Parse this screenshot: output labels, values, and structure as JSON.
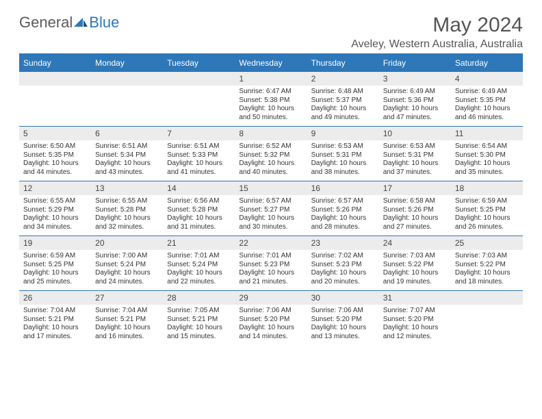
{
  "logo": {
    "text1": "General",
    "text2": "Blue"
  },
  "title": "May 2024",
  "location": "Aveley, Western Australia, Australia",
  "colors": {
    "accent": "#2e77b8",
    "band": "#ececec",
    "text": "#333333"
  },
  "weekdays": [
    "Sunday",
    "Monday",
    "Tuesday",
    "Wednesday",
    "Thursday",
    "Friday",
    "Saturday"
  ],
  "weeks": [
    [
      {
        "n": "",
        "sr": "",
        "ss": "",
        "dl": ""
      },
      {
        "n": "",
        "sr": "",
        "ss": "",
        "dl": ""
      },
      {
        "n": "",
        "sr": "",
        "ss": "",
        "dl": ""
      },
      {
        "n": "1",
        "sr": "Sunrise: 6:47 AM",
        "ss": "Sunset: 5:38 PM",
        "dl": "Daylight: 10 hours and 50 minutes."
      },
      {
        "n": "2",
        "sr": "Sunrise: 6:48 AM",
        "ss": "Sunset: 5:37 PM",
        "dl": "Daylight: 10 hours and 49 minutes."
      },
      {
        "n": "3",
        "sr": "Sunrise: 6:49 AM",
        "ss": "Sunset: 5:36 PM",
        "dl": "Daylight: 10 hours and 47 minutes."
      },
      {
        "n": "4",
        "sr": "Sunrise: 6:49 AM",
        "ss": "Sunset: 5:35 PM",
        "dl": "Daylight: 10 hours and 46 minutes."
      }
    ],
    [
      {
        "n": "5",
        "sr": "Sunrise: 6:50 AM",
        "ss": "Sunset: 5:35 PM",
        "dl": "Daylight: 10 hours and 44 minutes."
      },
      {
        "n": "6",
        "sr": "Sunrise: 6:51 AM",
        "ss": "Sunset: 5:34 PM",
        "dl": "Daylight: 10 hours and 43 minutes."
      },
      {
        "n": "7",
        "sr": "Sunrise: 6:51 AM",
        "ss": "Sunset: 5:33 PM",
        "dl": "Daylight: 10 hours and 41 minutes."
      },
      {
        "n": "8",
        "sr": "Sunrise: 6:52 AM",
        "ss": "Sunset: 5:32 PM",
        "dl": "Daylight: 10 hours and 40 minutes."
      },
      {
        "n": "9",
        "sr": "Sunrise: 6:53 AM",
        "ss": "Sunset: 5:31 PM",
        "dl": "Daylight: 10 hours and 38 minutes."
      },
      {
        "n": "10",
        "sr": "Sunrise: 6:53 AM",
        "ss": "Sunset: 5:31 PM",
        "dl": "Daylight: 10 hours and 37 minutes."
      },
      {
        "n": "11",
        "sr": "Sunrise: 6:54 AM",
        "ss": "Sunset: 5:30 PM",
        "dl": "Daylight: 10 hours and 35 minutes."
      }
    ],
    [
      {
        "n": "12",
        "sr": "Sunrise: 6:55 AM",
        "ss": "Sunset: 5:29 PM",
        "dl": "Daylight: 10 hours and 34 minutes."
      },
      {
        "n": "13",
        "sr": "Sunrise: 6:55 AM",
        "ss": "Sunset: 5:28 PM",
        "dl": "Daylight: 10 hours and 32 minutes."
      },
      {
        "n": "14",
        "sr": "Sunrise: 6:56 AM",
        "ss": "Sunset: 5:28 PM",
        "dl": "Daylight: 10 hours and 31 minutes."
      },
      {
        "n": "15",
        "sr": "Sunrise: 6:57 AM",
        "ss": "Sunset: 5:27 PM",
        "dl": "Daylight: 10 hours and 30 minutes."
      },
      {
        "n": "16",
        "sr": "Sunrise: 6:57 AM",
        "ss": "Sunset: 5:26 PM",
        "dl": "Daylight: 10 hours and 28 minutes."
      },
      {
        "n": "17",
        "sr": "Sunrise: 6:58 AM",
        "ss": "Sunset: 5:26 PM",
        "dl": "Daylight: 10 hours and 27 minutes."
      },
      {
        "n": "18",
        "sr": "Sunrise: 6:59 AM",
        "ss": "Sunset: 5:25 PM",
        "dl": "Daylight: 10 hours and 26 minutes."
      }
    ],
    [
      {
        "n": "19",
        "sr": "Sunrise: 6:59 AM",
        "ss": "Sunset: 5:25 PM",
        "dl": "Daylight: 10 hours and 25 minutes."
      },
      {
        "n": "20",
        "sr": "Sunrise: 7:00 AM",
        "ss": "Sunset: 5:24 PM",
        "dl": "Daylight: 10 hours and 24 minutes."
      },
      {
        "n": "21",
        "sr": "Sunrise: 7:01 AM",
        "ss": "Sunset: 5:24 PM",
        "dl": "Daylight: 10 hours and 22 minutes."
      },
      {
        "n": "22",
        "sr": "Sunrise: 7:01 AM",
        "ss": "Sunset: 5:23 PM",
        "dl": "Daylight: 10 hours and 21 minutes."
      },
      {
        "n": "23",
        "sr": "Sunrise: 7:02 AM",
        "ss": "Sunset: 5:23 PM",
        "dl": "Daylight: 10 hours and 20 minutes."
      },
      {
        "n": "24",
        "sr": "Sunrise: 7:03 AM",
        "ss": "Sunset: 5:22 PM",
        "dl": "Daylight: 10 hours and 19 minutes."
      },
      {
        "n": "25",
        "sr": "Sunrise: 7:03 AM",
        "ss": "Sunset: 5:22 PM",
        "dl": "Daylight: 10 hours and 18 minutes."
      }
    ],
    [
      {
        "n": "26",
        "sr": "Sunrise: 7:04 AM",
        "ss": "Sunset: 5:21 PM",
        "dl": "Daylight: 10 hours and 17 minutes."
      },
      {
        "n": "27",
        "sr": "Sunrise: 7:04 AM",
        "ss": "Sunset: 5:21 PM",
        "dl": "Daylight: 10 hours and 16 minutes."
      },
      {
        "n": "28",
        "sr": "Sunrise: 7:05 AM",
        "ss": "Sunset: 5:21 PM",
        "dl": "Daylight: 10 hours and 15 minutes."
      },
      {
        "n": "29",
        "sr": "Sunrise: 7:06 AM",
        "ss": "Sunset: 5:20 PM",
        "dl": "Daylight: 10 hours and 14 minutes."
      },
      {
        "n": "30",
        "sr": "Sunrise: 7:06 AM",
        "ss": "Sunset: 5:20 PM",
        "dl": "Daylight: 10 hours and 13 minutes."
      },
      {
        "n": "31",
        "sr": "Sunrise: 7:07 AM",
        "ss": "Sunset: 5:20 PM",
        "dl": "Daylight: 10 hours and 12 minutes."
      },
      {
        "n": "",
        "sr": "",
        "ss": "",
        "dl": ""
      }
    ]
  ]
}
